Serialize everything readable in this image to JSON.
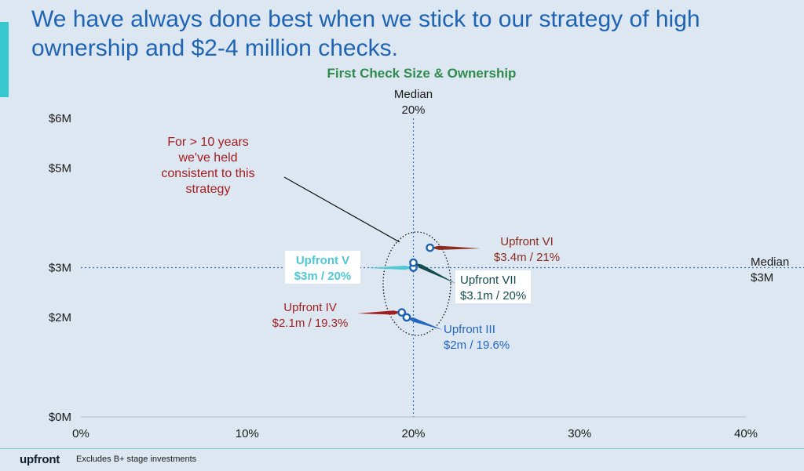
{
  "slide": {
    "headline": "We have always done best when we stick to our strategy of high ownership and $2-4 million checks.",
    "footnote": "Excludes B+ stage investments",
    "logo_text": "upfront"
  },
  "colors": {
    "background": "#dde7f1",
    "headline": "#1f64b4",
    "accent_bar": "#36c8cf",
    "title": "#2f8b4d",
    "marker": "#1f64b4",
    "median_line": "#3b72c0"
  },
  "chart_data": {
    "type": "scatter",
    "title": "First Check Size & Ownership",
    "xlabel": "",
    "ylabel": "",
    "xlim": [
      0,
      40
    ],
    "ylim": [
      0,
      6
    ],
    "x_ticks": [
      {
        "value": 0,
        "label": "0%"
      },
      {
        "value": 10,
        "label": "10%"
      },
      {
        "value": 20,
        "label": "20%"
      },
      {
        "value": 30,
        "label": "30%"
      },
      {
        "value": 40,
        "label": "40%"
      }
    ],
    "y_ticks": [
      {
        "value": 0,
        "label": "$0M"
      },
      {
        "value": 2,
        "label": "$2M"
      },
      {
        "value": 3,
        "label": "$3M"
      },
      {
        "value": 5,
        "label": "$5M"
      },
      {
        "value": 6,
        "label": "$6M"
      }
    ],
    "median_x": {
      "value": 20,
      "label_lines": [
        "Median",
        "20%"
      ]
    },
    "median_y": {
      "value": 3,
      "label_lines": [
        "Median",
        "$3M"
      ]
    },
    "points": [
      {
        "name": "Upfront III",
        "detail": "$2m / 19.6%",
        "x": 19.6,
        "y": 2.0,
        "color": "#2466c0"
      },
      {
        "name": "Upfront IV",
        "detail": "$2.1m / 19.3%",
        "x": 19.3,
        "y": 2.1,
        "color": "#a31d1f"
      },
      {
        "name": "Upfront V",
        "detail": "$3m / 20%",
        "x": 20,
        "y": 3.0,
        "color": "#4fc8d6"
      },
      {
        "name": "Upfront VI",
        "detail": "$3.4m / 21%",
        "x": 21,
        "y": 3.4,
        "color": "#8b2a1e"
      },
      {
        "name": "Upfront VII",
        "detail": "$3.1m / 20%",
        "x": 20,
        "y": 3.1,
        "color": "#134c50"
      }
    ],
    "annotation": {
      "lines": [
        "For > 10 years",
        "we've held",
        "consistent to this",
        "strategy"
      ]
    }
  }
}
